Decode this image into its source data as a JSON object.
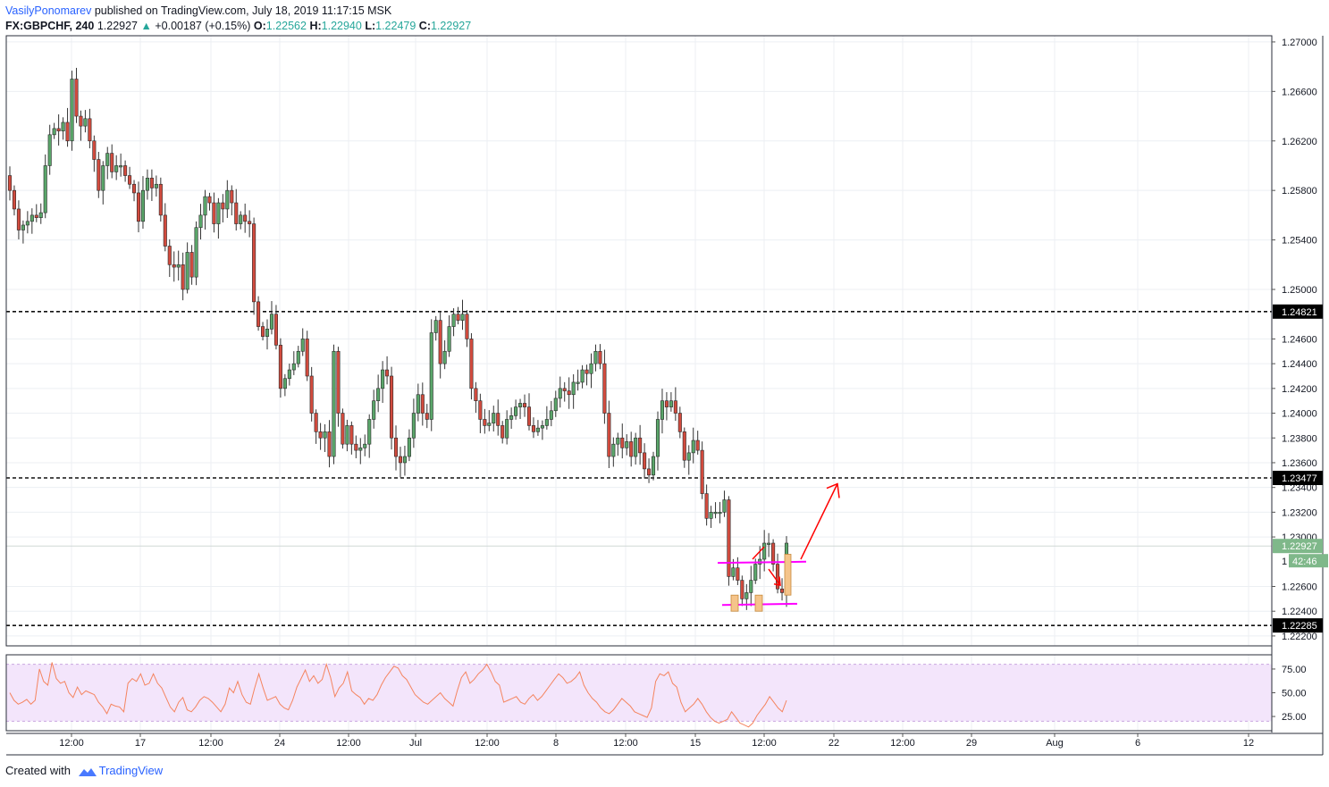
{
  "header": {
    "author": "VasilyPonomarev",
    "published_text": "published on TradingView.com, July 18, 2019 11:17:15 MSK"
  },
  "symbol_line": {
    "symbol": "FX:GBPCHF, 240",
    "last": "1.22927",
    "arrow": "▲",
    "change": "+0.00187 (+0.15%)",
    "o_label": "O:",
    "o_value": "1.22562",
    "h_label": "H:",
    "h_value": "1.22940",
    "l_label": "L:",
    "l_value": "1.22479",
    "c_label": "C:",
    "c_value": "1.22927"
  },
  "footer": {
    "created_with": "Created with",
    "brand": "TradingView"
  },
  "colors": {
    "up": "#26a69a",
    "up_candle": "#5aa66a",
    "down_candle": "#d24b3e",
    "rsi_line": "#f4845f",
    "rsi_band": "#f3e5fb",
    "annotation_red": "#ff0000",
    "annotation_magenta": "#ff00ff",
    "box_orange": "#f5c48a"
  },
  "chart_data": {
    "type": "candlestick",
    "ylim": [
      1.2212,
      1.2705
    ],
    "y_ticks": [
      "1.27000",
      "1.26600",
      "1.26200",
      "1.25800",
      "1.25400",
      "1.25000",
      "1.24600",
      "1.24400",
      "1.24200",
      "1.24000",
      "1.23800",
      "1.23600",
      "1.23400",
      "1.23200",
      "1.23000",
      "1.22600",
      "1.22400",
      "1.22200"
    ],
    "x_ticks": [
      "12:00",
      "17",
      "12:00",
      "24",
      "12:00",
      "Jul",
      "12:00",
      "8",
      "12:00",
      "15",
      "12:00",
      "22",
      "12:00",
      "29",
      "Aug",
      "6",
      "12"
    ],
    "horizontal_levels": [
      "1.24821",
      "1.23477",
      "1.22285"
    ],
    "current_price": "1.22927",
    "countdown": "42:46",
    "countdown_prefix": "1",
    "closes": [
      1.258,
      1.2565,
      1.2548,
      1.2552,
      1.2555,
      1.256,
      1.2558,
      1.2562,
      1.26,
      1.2625,
      1.263,
      1.2628,
      1.2635,
      1.262,
      1.267,
      1.264,
      1.2632,
      1.2638,
      1.262,
      1.2605,
      1.258,
      1.26,
      1.261,
      1.2595,
      1.26,
      1.26,
      1.2592,
      1.2585,
      1.2578,
      1.2555,
      1.258,
      1.259,
      1.2582,
      1.2585,
      1.256,
      1.2535,
      1.252,
      1.2518,
      1.252,
      1.25,
      1.253,
      1.251,
      1.255,
      1.256,
      1.2575,
      1.257,
      1.2553,
      1.257,
      1.2565,
      1.258,
      1.257,
      1.2553,
      1.256,
      1.2555,
      1.2553,
      1.249,
      1.247,
      1.2462,
      1.2468,
      1.248,
      1.2455,
      1.242,
      1.2428,
      1.2435,
      1.244,
      1.245,
      1.246,
      1.243,
      1.24,
      1.2385,
      1.238,
      1.2385,
      1.2365,
      1.245,
      1.24,
      1.2375,
      1.239,
      1.2375,
      1.237,
      1.2372,
      1.2375,
      1.2395,
      1.241,
      1.242,
      1.2435,
      1.243,
      1.238,
      1.2365,
      1.236,
      1.2365,
      1.238,
      1.24,
      1.2415,
      1.24,
      1.2395,
      1.2465,
      1.2475,
      1.244,
      1.245,
      1.247,
      1.248,
      1.2475,
      1.248,
      1.246,
      1.242,
      1.241,
      1.2395,
      1.239,
      1.2392,
      1.24,
      1.239,
      1.238,
      1.2395,
      1.2398,
      1.2405,
      1.2408,
      1.2405,
      1.239,
      1.2385,
      1.2388,
      1.239,
      1.2395,
      1.2402,
      1.2412,
      1.242,
      1.2418,
      1.2415,
      1.2425,
      1.2425,
      1.2435,
      1.2432,
      1.244,
      1.245,
      1.244,
      1.24,
      1.2365,
      1.2375,
      1.238,
      1.2372,
      1.2377,
      1.2365,
      1.238,
      1.2368,
      1.2355,
      1.235,
      1.2365,
      1.2395,
      1.241,
      1.2405,
      1.241,
      1.24,
      1.2385,
      1.2362,
      1.2368,
      1.2378,
      1.237,
      1.2335,
      1.2315,
      1.232,
      1.232,
      1.232,
      1.233,
      1.2268,
      1.2275,
      1.2265,
      1.225,
      1.2255,
      1.2265,
      1.2278,
      1.2282,
      1.2295,
      1.2295,
      1.2278,
      1.2258,
      1.2255,
      1.2295
    ],
    "rsi": {
      "ticks": [
        "75.00",
        "50.00",
        "25.00"
      ],
      "range": [
        10,
        90
      ],
      "band": [
        20,
        80
      ],
      "values": [
        50,
        42,
        38,
        40,
        43,
        38,
        42,
        75,
        62,
        58,
        82,
        65,
        60,
        62,
        50,
        45,
        56,
        48,
        52,
        50,
        48,
        40,
        35,
        28,
        38,
        36,
        35,
        30,
        60,
        65,
        62,
        70,
        58,
        60,
        70,
        60,
        55,
        45,
        35,
        30,
        40,
        45,
        32,
        30,
        35,
        42,
        46,
        44,
        40,
        35,
        30,
        38,
        55,
        50,
        62,
        48,
        40,
        38,
        55,
        70,
        55,
        42,
        44,
        46,
        38,
        34,
        32,
        42,
        56,
        65,
        74,
        62,
        68,
        60,
        64,
        80,
        66,
        46,
        55,
        60,
        72,
        52,
        48,
        45,
        38,
        44,
        42,
        48,
        58,
        66,
        72,
        78,
        76,
        68,
        64,
        56,
        48,
        44,
        40,
        38,
        42,
        46,
        50,
        44,
        40,
        36,
        52,
        66,
        72,
        60,
        64,
        70,
        74,
        80,
        72,
        62,
        58,
        40,
        42,
        44,
        46,
        40,
        38,
        44,
        48,
        42,
        46,
        52,
        58,
        64,
        70,
        66,
        60,
        62,
        66,
        72,
        58,
        50,
        44,
        40,
        34,
        30,
        28,
        32,
        38,
        44,
        40,
        36,
        30,
        28,
        26,
        24,
        34,
        62,
        70,
        68,
        72,
        60,
        56,
        40,
        30,
        34,
        38,
        44,
        38,
        30,
        24,
        20,
        18,
        20,
        22,
        30,
        24,
        18,
        16,
        14,
        18,
        26,
        32,
        38,
        46,
        40,
        34,
        30,
        42
      ]
    }
  }
}
